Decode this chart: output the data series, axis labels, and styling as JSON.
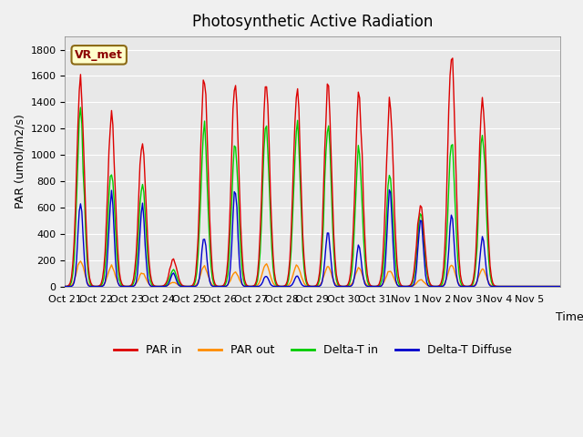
{
  "title": "Photosynthetic Active Radiation",
  "ylabel": "PAR (umol/m2/s)",
  "xlabel": "Time",
  "label_text": "VR_met",
  "background_color": "#f0f0f0",
  "plot_bg_color": "#e8e8e8",
  "ylim": [
    0,
    1900
  ],
  "yticks": [
    0,
    200,
    400,
    600,
    800,
    1000,
    1200,
    1400,
    1600,
    1800
  ],
  "xtick_labels": [
    "Oct 21",
    "Oct 22",
    "Oct 23",
    "Oct 24",
    "Oct 25",
    "Oct 26",
    "Oct 27",
    "Oct 28",
    "Oct 29",
    "Oct 30",
    "Oct 31",
    "Nov 1",
    "Nov 2",
    "Nov 3",
    "Nov 4",
    "Nov 5"
  ],
  "n_days": 16,
  "colors": {
    "PAR_in": "#dd0000",
    "PAR_out": "#ff8c00",
    "Delta_T_in": "#00cc00",
    "Delta_T_Diffuse": "#0000cc"
  },
  "legend_labels": [
    "PAR in",
    "PAR out",
    "Delta-T in",
    "Delta-T Diffuse"
  ],
  "par_in_peaks": [
    1600,
    1260,
    1100,
    200,
    1600,
    1570,
    1530,
    1500,
    1500,
    1440,
    1390,
    640,
    1790,
    1450,
    0,
    0
  ],
  "par_out_peaks": [
    200,
    150,
    100,
    30,
    150,
    110,
    170,
    160,
    150,
    140,
    120,
    50,
    160,
    130,
    0,
    0
  ],
  "delta_t_in_peaks": [
    1300,
    880,
    780,
    120,
    1200,
    1100,
    1230,
    1230,
    1220,
    1020,
    840,
    550,
    1100,
    1170,
    0,
    0
  ],
  "delta_t_diff_peaks": [
    650,
    700,
    600,
    100,
    380,
    730,
    80,
    80,
    420,
    300,
    720,
    520,
    530,
    360,
    0,
    0
  ]
}
